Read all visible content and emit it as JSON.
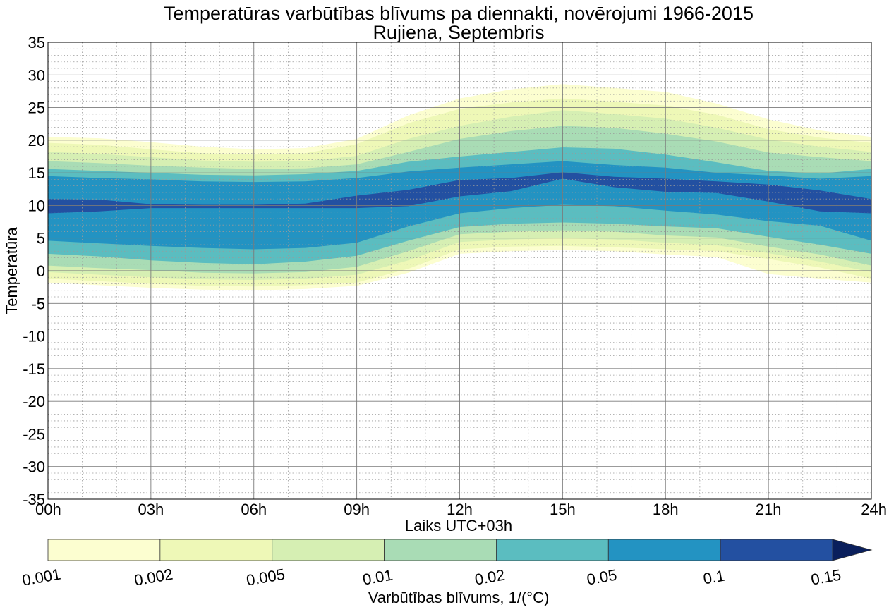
{
  "chart_data": {
    "type": "contourf",
    "title": "Temperatūras varbūtības blīvums pa diennakti, novērojumi 1966-2015",
    "subtitle": "Rujiena, Septembris",
    "xlabel": "Laiks UTC+03h",
    "ylabel": "Temperatūra",
    "xlim": [
      0,
      24
    ],
    "ylim": [
      -35,
      35
    ],
    "x_ticks": [
      0,
      3,
      6,
      9,
      12,
      15,
      18,
      21,
      24
    ],
    "x_tick_labels": [
      "00h",
      "03h",
      "06h",
      "09h",
      "12h",
      "15h",
      "18h",
      "21h",
      "24h"
    ],
    "y_ticks": [
      -35,
      -30,
      -25,
      -20,
      -15,
      -10,
      -5,
      0,
      5,
      10,
      15,
      20,
      25,
      30,
      35
    ],
    "y_tick_labels": [
      "-35",
      "-30",
      "-25",
      "-20",
      "-15",
      "-10",
      "-5",
      "0",
      "5",
      "10",
      "15",
      "20",
      "25",
      "30",
      "35"
    ],
    "grid": true,
    "minor_grid": true,
    "colorbar": {
      "label": "Varbūtības blīvums, 1/(°C)",
      "levels": [
        0.001,
        0.002,
        0.005,
        0.01,
        0.02,
        0.05,
        0.1,
        0.15
      ],
      "level_labels": [
        "0.001",
        "0.002",
        "0.005",
        "0.01",
        "0.02",
        "0.05",
        "0.1",
        "0.15"
      ],
      "colors": [
        "#fcfed0",
        "#eef8b7",
        "#d6efb3",
        "#a9dcb5",
        "#5bbdc0",
        "#2393c2",
        "#2350a1",
        "#0a1f5c"
      ],
      "extend": "max"
    },
    "hours": [
      0,
      1.5,
      3,
      4.5,
      6,
      7.5,
      9,
      10.5,
      12,
      13.5,
      15,
      16.5,
      18,
      19.5,
      21,
      22.5,
      24
    ],
    "bands": [
      {
        "level": 0.001,
        "color": "#fcfed0",
        "lower": [
          -1.8,
          -2.2,
          -2.6,
          -2.9,
          -3.0,
          -2.8,
          -2.3,
          -0.3,
          2.6,
          3.0,
          3.2,
          3.0,
          2.5,
          2.1,
          -0.5,
          -1.2,
          -1.8
        ],
        "upper": [
          20.5,
          20.3,
          19.7,
          19.0,
          18.6,
          18.8,
          20.2,
          23.8,
          26.4,
          27.8,
          28.6,
          28.0,
          27.4,
          25.6,
          23.2,
          21.5,
          20.5
        ]
      },
      {
        "level": 0.002,
        "color": "#eef8b7",
        "lower": [
          -1.2,
          -1.6,
          -2.0,
          -2.3,
          -2.4,
          -2.2,
          -1.8,
          0.3,
          3.3,
          3.7,
          3.8,
          3.6,
          3.3,
          3.0,
          1.8,
          0.5,
          -1.2
        ],
        "upper": [
          19.6,
          19.3,
          18.6,
          18.0,
          17.8,
          18.0,
          19.4,
          22.6,
          24.8,
          25.8,
          26.4,
          25.9,
          25.3,
          23.9,
          21.7,
          20.4,
          19.6
        ]
      },
      {
        "level": 0.005,
        "color": "#d6efb3",
        "lower": [
          -0.2,
          -0.6,
          -1.0,
          -1.3,
          -1.4,
          -1.2,
          -0.6,
          1.6,
          4.4,
          4.8,
          5.0,
          4.8,
          4.3,
          3.9,
          2.7,
          1.4,
          -0.2
        ],
        "upper": [
          18.2,
          17.9,
          17.4,
          16.9,
          16.7,
          16.8,
          17.6,
          20.2,
          22.2,
          23.6,
          24.6,
          24.0,
          23.3,
          21.9,
          20.1,
          19.0,
          18.2
        ]
      },
      {
        "level": 0.01,
        "color": "#a9dcb5",
        "lower": [
          0.8,
          0.4,
          0.1,
          -0.3,
          -0.4,
          -0.2,
          0.6,
          3.0,
          5.6,
          6.0,
          6.2,
          6.0,
          5.4,
          5.1,
          3.7,
          2.5,
          0.8
        ],
        "upper": [
          16.8,
          16.5,
          16.1,
          15.8,
          15.6,
          15.7,
          16.3,
          18.2,
          20.2,
          21.4,
          22.2,
          21.9,
          21.0,
          19.8,
          18.1,
          17.4,
          16.8
        ]
      },
      {
        "level": 0.02,
        "color": "#5bbdc0",
        "lower": [
          2.6,
          2.2,
          1.6,
          1.2,
          1.0,
          1.4,
          2.3,
          4.6,
          6.7,
          7.2,
          7.4,
          7.2,
          6.8,
          6.5,
          5.2,
          4.0,
          2.6
        ],
        "upper": [
          15.6,
          15.3,
          15.0,
          14.7,
          14.6,
          14.8,
          15.3,
          16.7,
          17.5,
          18.2,
          18.9,
          18.7,
          17.8,
          16.6,
          15.3,
          14.9,
          15.6
        ]
      },
      {
        "level": 0.05,
        "color": "#2393c2",
        "lower": [
          4.6,
          4.2,
          3.8,
          3.5,
          3.3,
          3.5,
          4.3,
          6.8,
          8.8,
          9.6,
          10.1,
          9.9,
          9.2,
          8.6,
          7.6,
          6.9,
          4.6
        ],
        "upper": [
          14.5,
          14.2,
          14.0,
          13.7,
          13.6,
          13.7,
          14.2,
          15.2,
          15.8,
          16.3,
          16.8,
          16.2,
          15.8,
          15.0,
          14.6,
          14.1,
          14.5
        ]
      },
      {
        "level": 0.1,
        "color": "#2350a1",
        "lower": [
          8.8,
          9.1,
          9.6,
          9.6,
          9.6,
          9.6,
          9.6,
          9.9,
          11.4,
          12.2,
          14.1,
          12.8,
          12.1,
          11.9,
          10.6,
          9.1,
          8.8
        ],
        "upper": [
          11.0,
          10.9,
          10.2,
          10.1,
          10.1,
          10.3,
          11.5,
          12.4,
          13.9,
          14.2,
          15.1,
          14.4,
          14.1,
          13.7,
          13.2,
          12.3,
          11.0
        ]
      }
    ]
  }
}
